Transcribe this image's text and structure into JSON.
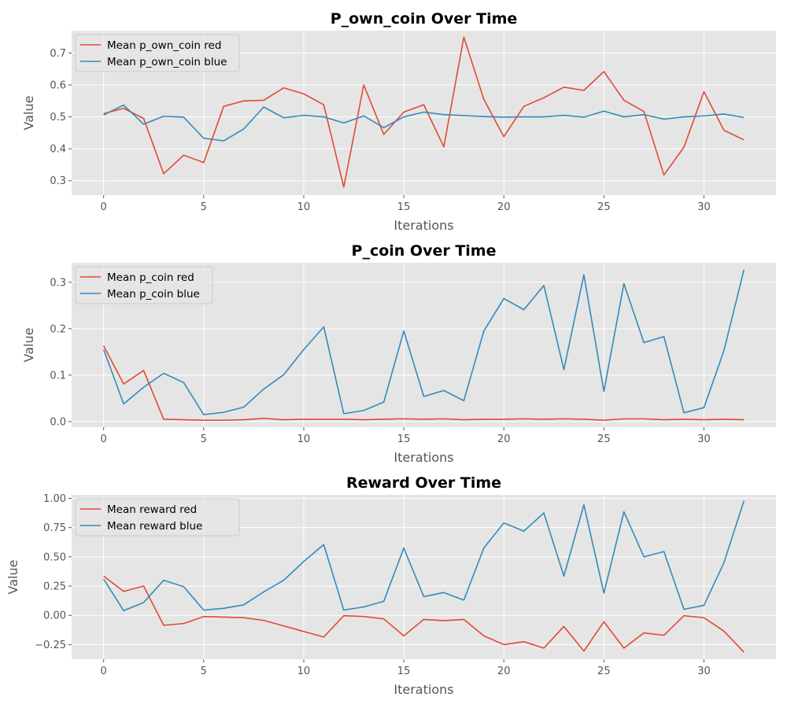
{
  "chart_data": [
    {
      "type": "line",
      "title": "P_own_coin Over Time",
      "xlabel": "Iterations",
      "ylabel": "Value",
      "xlim": [
        -1.6,
        33.6
      ],
      "ylim": [
        0.255,
        0.77
      ],
      "xticks": [
        0,
        5,
        10,
        15,
        20,
        25,
        30
      ],
      "xtick_labels": [
        "0",
        "5",
        "10",
        "15",
        "20",
        "25",
        "30"
      ],
      "yticks": [
        0.3,
        0.4,
        0.5,
        0.6,
        0.7
      ],
      "ytick_labels": [
        "0.3",
        "0.4",
        "0.5",
        "0.6",
        "0.7"
      ],
      "grid": true,
      "legend": "upper-left",
      "x": [
        0,
        1,
        2,
        3,
        4,
        5,
        6,
        7,
        8,
        9,
        10,
        11,
        12,
        13,
        14,
        15,
        16,
        17,
        18,
        19,
        20,
        21,
        22,
        23,
        24,
        25,
        26,
        27,
        28,
        29,
        30,
        31,
        32
      ],
      "series": [
        {
          "name": "Mean p_own_coin red",
          "color": "#e24a33",
          "values": [
            0.51,
            0.527,
            0.495,
            0.322,
            0.38,
            0.357,
            0.533,
            0.55,
            0.552,
            0.591,
            0.572,
            0.538,
            0.28,
            0.6,
            0.445,
            0.515,
            0.538,
            0.406,
            0.75,
            0.555,
            0.438,
            0.533,
            0.56,
            0.593,
            0.583,
            0.642,
            0.552,
            0.517,
            0.318,
            0.405,
            0.579,
            0.458,
            0.428
          ]
        },
        {
          "name": "Mean p_own_coin blue",
          "color": "#348abd",
          "values": [
            0.506,
            0.537,
            0.477,
            0.502,
            0.499,
            0.433,
            0.425,
            0.462,
            0.531,
            0.497,
            0.505,
            0.5,
            0.481,
            0.503,
            0.466,
            0.5,
            0.515,
            0.507,
            0.504,
            0.501,
            0.499,
            0.5,
            0.5,
            0.505,
            0.499,
            0.518,
            0.5,
            0.507,
            0.493,
            0.5,
            0.503,
            0.509,
            0.498
          ]
        }
      ]
    },
    {
      "type": "line",
      "title": "P_coin Over Time",
      "xlabel": "Iterations",
      "ylabel": "Value",
      "xlim": [
        -1.6,
        33.6
      ],
      "ylim": [
        -0.012,
        0.342
      ],
      "xticks": [
        0,
        5,
        10,
        15,
        20,
        25,
        30
      ],
      "xtick_labels": [
        "0",
        "5",
        "10",
        "15",
        "20",
        "25",
        "30"
      ],
      "yticks": [
        0.0,
        0.1,
        0.2,
        0.3
      ],
      "ytick_labels": [
        "0.0",
        "0.1",
        "0.2",
        "0.3"
      ],
      "grid": true,
      "legend": "upper-left",
      "x": [
        0,
        1,
        2,
        3,
        4,
        5,
        6,
        7,
        8,
        9,
        10,
        11,
        12,
        13,
        14,
        15,
        16,
        17,
        18,
        19,
        20,
        21,
        22,
        23,
        24,
        25,
        26,
        27,
        28,
        29,
        30,
        31,
        32
      ],
      "series": [
        {
          "name": "Mean p_coin red",
          "color": "#e24a33",
          "values": [
            0.163,
            0.081,
            0.11,
            0.005,
            0.004,
            0.003,
            0.003,
            0.004,
            0.007,
            0.004,
            0.005,
            0.005,
            0.005,
            0.004,
            0.005,
            0.006,
            0.005,
            0.006,
            0.004,
            0.005,
            0.005,
            0.006,
            0.005,
            0.006,
            0.005,
            0.003,
            0.006,
            0.006,
            0.004,
            0.005,
            0.004,
            0.005,
            0.004
          ]
        },
        {
          "name": "Mean p_coin blue",
          "color": "#348abd",
          "values": [
            0.155,
            0.038,
            0.074,
            0.104,
            0.084,
            0.015,
            0.02,
            0.031,
            0.07,
            0.101,
            0.155,
            0.204,
            0.017,
            0.024,
            0.042,
            0.195,
            0.054,
            0.067,
            0.045,
            0.195,
            0.265,
            0.241,
            0.293,
            0.112,
            0.316,
            0.065,
            0.297,
            0.17,
            0.183,
            0.019,
            0.03,
            0.153,
            0.327
          ]
        }
      ]
    },
    {
      "type": "line",
      "title": "Reward Over Time",
      "xlabel": "Iterations",
      "ylabel": "Value",
      "xlim": [
        -1.6,
        33.6
      ],
      "ylim": [
        -0.375,
        1.03
      ],
      "xticks": [
        0,
        5,
        10,
        15,
        20,
        25,
        30
      ],
      "xtick_labels": [
        "0",
        "5",
        "10",
        "15",
        "20",
        "25",
        "30"
      ],
      "yticks": [
        -0.25,
        0.0,
        0.25,
        0.5,
        0.75,
        1.0
      ],
      "ytick_labels": [
        "−0.25",
        "0.00",
        "0.25",
        "0.50",
        "0.75",
        "1.00"
      ],
      "grid": true,
      "legend": "upper-left",
      "x": [
        0,
        1,
        2,
        3,
        4,
        5,
        6,
        7,
        8,
        9,
        10,
        11,
        12,
        13,
        14,
        15,
        16,
        17,
        18,
        19,
        20,
        21,
        22,
        23,
        24,
        25,
        26,
        27,
        28,
        29,
        30,
        31,
        32
      ],
      "series": [
        {
          "name": "Mean reward red",
          "color": "#e24a33",
          "values": [
            0.335,
            0.205,
            0.25,
            -0.085,
            -0.07,
            -0.01,
            -0.015,
            -0.02,
            -0.043,
            -0.09,
            -0.138,
            -0.185,
            -0.003,
            -0.01,
            -0.03,
            -0.175,
            -0.035,
            -0.045,
            -0.035,
            -0.175,
            -0.25,
            -0.225,
            -0.28,
            -0.095,
            -0.305,
            -0.055,
            -0.28,
            -0.15,
            -0.17,
            -0.003,
            -0.02,
            -0.135,
            -0.315
          ]
        },
        {
          "name": "Mean reward blue",
          "color": "#348abd",
          "values": [
            0.31,
            0.04,
            0.11,
            0.3,
            0.245,
            0.045,
            0.06,
            0.09,
            0.2,
            0.3,
            0.46,
            0.605,
            0.045,
            0.072,
            0.12,
            0.575,
            0.16,
            0.195,
            0.13,
            0.575,
            0.79,
            0.72,
            0.875,
            0.335,
            0.945,
            0.19,
            0.885,
            0.5,
            0.545,
            0.052,
            0.085,
            0.45,
            0.98
          ]
        }
      ]
    }
  ]
}
